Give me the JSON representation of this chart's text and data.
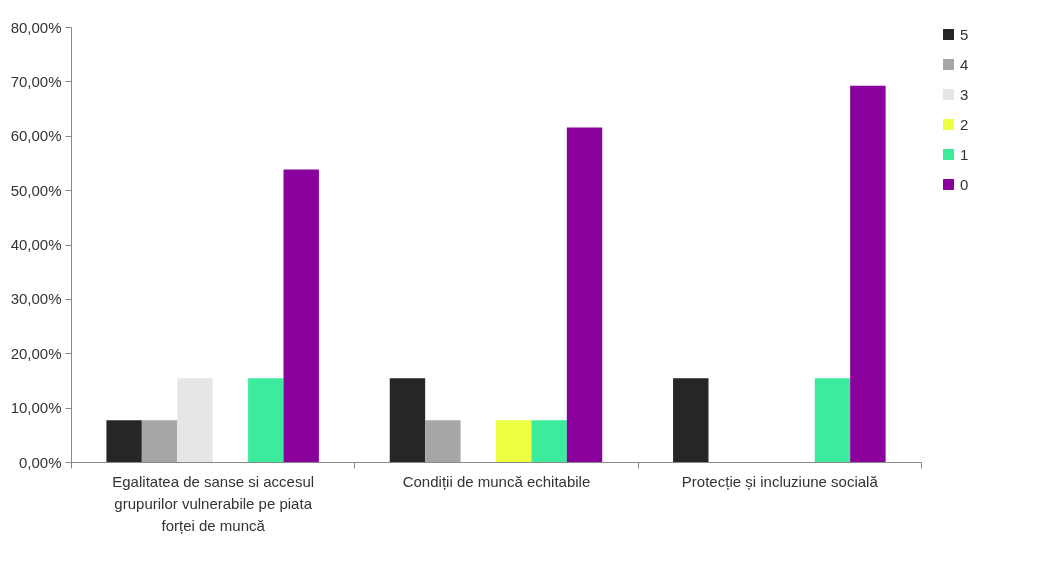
{
  "chart_data": {
    "type": "bar",
    "categories": [
      "Egalitatea de sanse si accesul grupurilor vulnerabile pe piata forței de muncă",
      "Condiții de muncă echitabile",
      "Protecție și incluziune socială"
    ],
    "series": [
      {
        "name": "5",
        "color": "#262626",
        "values": [
          7.7,
          15.4,
          15.4
        ]
      },
      {
        "name": "4",
        "color": "#a6a6a6",
        "values": [
          7.7,
          7.7,
          0
        ]
      },
      {
        "name": "3",
        "color": "#e6e6e6",
        "values": [
          15.4,
          0,
          0
        ]
      },
      {
        "name": "2",
        "color": "#eeff41",
        "values": [
          0,
          7.7,
          0
        ]
      },
      {
        "name": "1",
        "color": "#3deb9c",
        "values": [
          15.4,
          7.7,
          15.4
        ]
      },
      {
        "name": "0",
        "color": "#8a009c",
        "values": [
          53.8,
          61.5,
          69.2
        ]
      }
    ],
    "ylim": [
      0,
      80
    ],
    "yticks": [
      {
        "value": 0,
        "label": "0,00%"
      },
      {
        "value": 10,
        "label": "10,00%"
      },
      {
        "value": 20,
        "label": "20,00%"
      },
      {
        "value": 30,
        "label": "30,00%"
      },
      {
        "value": 40,
        "label": "40,00%"
      },
      {
        "value": 50,
        "label": "50,00%"
      },
      {
        "value": 60,
        "label": "60,00%"
      },
      {
        "value": 70,
        "label": "70,00%"
      },
      {
        "value": 80,
        "label": "80,00%"
      }
    ],
    "grid": false,
    "legend": "right"
  }
}
